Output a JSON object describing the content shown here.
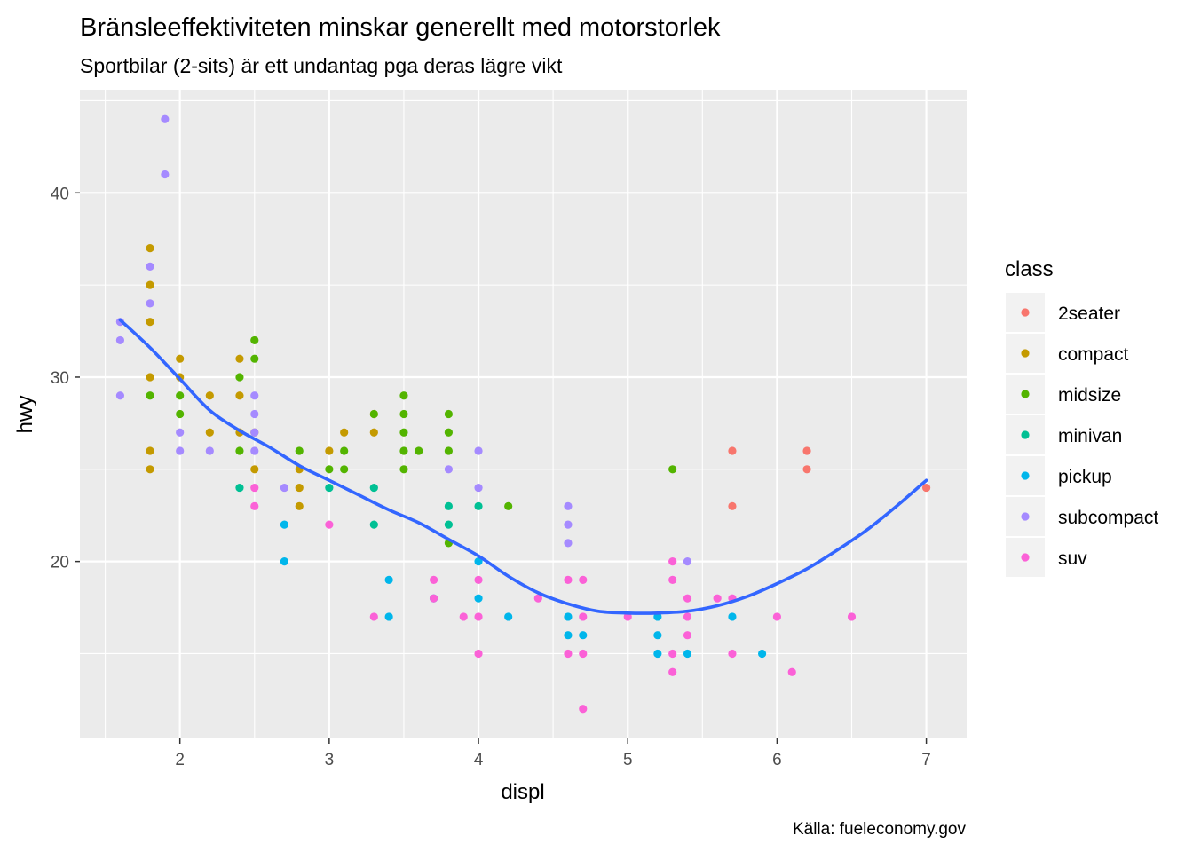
{
  "chart_data": {
    "type": "scatter",
    "title": "Bränsleeffektiviteten minskar generellt med motorstorlek",
    "subtitle": "Sportbilar (2-sits) är ett undantag pga deras lägre vikt",
    "caption": "Källa: fueleconomy.gov",
    "xlabel": "displ",
    "ylabel": "hwy",
    "xlim": [
      1.33,
      7.27
    ],
    "ylim": [
      10.4,
      45.6
    ],
    "x_ticks": [
      2,
      3,
      4,
      5,
      6,
      7
    ],
    "y_ticks": [
      20,
      30,
      40
    ],
    "grid": true,
    "legend": {
      "title": "class",
      "position": "right"
    },
    "series": [
      {
        "name": "2seater",
        "color": "#F8766D",
        "points": [
          [
            5.7,
            26
          ],
          [
            5.7,
            23
          ],
          [
            6.2,
            26
          ],
          [
            6.2,
            25
          ],
          [
            7.0,
            24
          ]
        ]
      },
      {
        "name": "compact",
        "color": "#C49A00",
        "points": [
          [
            1.8,
            37
          ],
          [
            1.8,
            35
          ],
          [
            1.8,
            33
          ],
          [
            1.8,
            30
          ],
          [
            1.8,
            26
          ],
          [
            1.8,
            25
          ],
          [
            2.0,
            31
          ],
          [
            2.0,
            30
          ],
          [
            2.2,
            29
          ],
          [
            2.2,
            27
          ],
          [
            2.4,
            31
          ],
          [
            2.4,
            29
          ],
          [
            2.4,
            27
          ],
          [
            2.5,
            27
          ],
          [
            2.5,
            25
          ],
          [
            2.8,
            25
          ],
          [
            2.8,
            24
          ],
          [
            2.8,
            23
          ],
          [
            3.0,
            26
          ],
          [
            3.1,
            27
          ],
          [
            3.3,
            28
          ],
          [
            3.3,
            27
          ]
        ]
      },
      {
        "name": "midsize",
        "color": "#53B400",
        "points": [
          [
            1.8,
            29
          ],
          [
            2.0,
            29
          ],
          [
            2.0,
            28
          ],
          [
            2.4,
            30
          ],
          [
            2.4,
            26
          ],
          [
            2.5,
            32
          ],
          [
            2.5,
            31
          ],
          [
            2.8,
            26
          ],
          [
            3.0,
            25
          ],
          [
            3.1,
            26
          ],
          [
            3.1,
            25
          ],
          [
            3.3,
            28
          ],
          [
            3.5,
            29
          ],
          [
            3.5,
            28
          ],
          [
            3.5,
            27
          ],
          [
            3.5,
            26
          ],
          [
            3.5,
            25
          ],
          [
            3.6,
            26
          ],
          [
            3.8,
            28
          ],
          [
            3.8,
            27
          ],
          [
            3.8,
            26
          ],
          [
            3.8,
            21
          ],
          [
            4.2,
            23
          ],
          [
            5.3,
            25
          ]
        ]
      },
      {
        "name": "minivan",
        "color": "#00C094",
        "points": [
          [
            2.4,
            24
          ],
          [
            3.0,
            24
          ],
          [
            3.3,
            24
          ],
          [
            3.3,
            22
          ],
          [
            3.8,
            23
          ],
          [
            3.8,
            22
          ],
          [
            4.0,
            23
          ]
        ]
      },
      {
        "name": "pickup",
        "color": "#00B6EB",
        "points": [
          [
            2.7,
            22
          ],
          [
            2.7,
            20
          ],
          [
            3.4,
            19
          ],
          [
            3.4,
            17
          ],
          [
            3.7,
            18
          ],
          [
            4.0,
            20
          ],
          [
            4.0,
            18
          ],
          [
            4.2,
            17
          ],
          [
            4.6,
            17
          ],
          [
            4.6,
            16
          ],
          [
            4.7,
            16
          ],
          [
            5.2,
            17
          ],
          [
            5.2,
            16
          ],
          [
            5.2,
            15
          ],
          [
            5.4,
            15
          ],
          [
            5.7,
            17
          ],
          [
            5.9,
            15
          ]
        ]
      },
      {
        "name": "subcompact",
        "color": "#A58AFF",
        "points": [
          [
            1.6,
            33
          ],
          [
            1.6,
            32
          ],
          [
            1.6,
            29
          ],
          [
            1.8,
            36
          ],
          [
            1.8,
            34
          ],
          [
            1.9,
            44
          ],
          [
            1.9,
            41
          ],
          [
            2.0,
            27
          ],
          [
            2.0,
            26
          ],
          [
            2.2,
            26
          ],
          [
            2.5,
            29
          ],
          [
            2.5,
            28
          ],
          [
            2.5,
            27
          ],
          [
            2.5,
            26
          ],
          [
            2.7,
            24
          ],
          [
            3.8,
            25
          ],
          [
            4.0,
            26
          ],
          [
            4.0,
            24
          ],
          [
            4.6,
            23
          ],
          [
            4.6,
            22
          ],
          [
            4.6,
            21
          ],
          [
            5.4,
            20
          ]
        ]
      },
      {
        "name": "suv",
        "color": "#FB61D7",
        "points": [
          [
            2.5,
            24
          ],
          [
            2.5,
            23
          ],
          [
            3.0,
            22
          ],
          [
            3.3,
            17
          ],
          [
            3.7,
            19
          ],
          [
            3.7,
            18
          ],
          [
            3.9,
            17
          ],
          [
            4.0,
            19
          ],
          [
            4.0,
            17
          ],
          [
            4.0,
            15
          ],
          [
            4.4,
            18
          ],
          [
            4.6,
            19
          ],
          [
            4.6,
            15
          ],
          [
            4.7,
            19
          ],
          [
            4.7,
            17
          ],
          [
            4.7,
            15
          ],
          [
            4.7,
            12
          ],
          [
            5.0,
            17
          ],
          [
            5.3,
            20
          ],
          [
            5.3,
            19
          ],
          [
            5.3,
            15
          ],
          [
            5.3,
            14
          ],
          [
            5.4,
            18
          ],
          [
            5.4,
            17
          ],
          [
            5.4,
            16
          ],
          [
            5.6,
            18
          ],
          [
            5.7,
            18
          ],
          [
            5.7,
            15
          ],
          [
            6.0,
            17
          ],
          [
            6.1,
            14
          ],
          [
            6.5,
            17
          ]
        ]
      }
    ],
    "smooth": {
      "color": "#3366FF",
      "points": [
        [
          1.6,
          33.1
        ],
        [
          1.8,
          31.6
        ],
        [
          2.0,
          29.9
        ],
        [
          2.2,
          28.2
        ],
        [
          2.4,
          27.1
        ],
        [
          2.6,
          26.2
        ],
        [
          2.8,
          25.2
        ],
        [
          3.0,
          24.4
        ],
        [
          3.2,
          23.6
        ],
        [
          3.4,
          22.8
        ],
        [
          3.6,
          22.1
        ],
        [
          3.8,
          21.2
        ],
        [
          4.0,
          20.3
        ],
        [
          4.2,
          19.2
        ],
        [
          4.4,
          18.3
        ],
        [
          4.6,
          17.7
        ],
        [
          4.8,
          17.3
        ],
        [
          5.0,
          17.2
        ],
        [
          5.2,
          17.2
        ],
        [
          5.4,
          17.3
        ],
        [
          5.6,
          17.6
        ],
        [
          5.8,
          18.1
        ],
        [
          6.0,
          18.8
        ],
        [
          6.2,
          19.6
        ],
        [
          6.4,
          20.6
        ],
        [
          6.6,
          21.7
        ],
        [
          6.8,
          23.0
        ],
        [
          7.0,
          24.4
        ]
      ]
    }
  }
}
